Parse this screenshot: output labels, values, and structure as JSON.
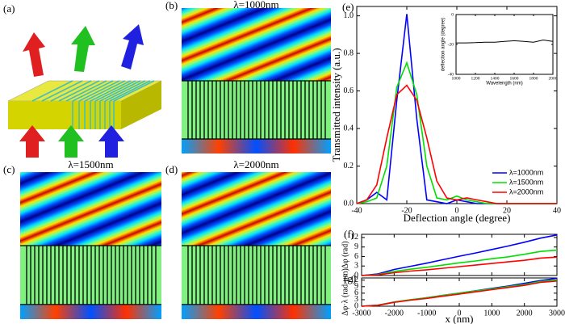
{
  "panels": {
    "a": {
      "label": "(a)"
    },
    "b": {
      "label": "(b)",
      "title": "λ=1000nm"
    },
    "c": {
      "label": "(c)",
      "title": "λ=1500nm"
    },
    "d": {
      "label": "(d)",
      "title": "λ=2000nm"
    }
  },
  "chart_data": [
    {
      "type": "line",
      "label": "(e)",
      "xlabel": "Deflection angle (degree)",
      "ylabel": "Transmitted intensity (a.u.)",
      "x": [
        -40,
        -36,
        -32,
        -28,
        -24,
        -20,
        -16,
        -12,
        -8,
        -4,
        0,
        4,
        8,
        12,
        16,
        20,
        24,
        28,
        32,
        36,
        40
      ],
      "xlim": [
        -40,
        40
      ],
      "xticks": [
        -40,
        -20,
        0,
        20,
        40
      ],
      "ylim": [
        0,
        1.05
      ],
      "yticks": [
        {
          "value": 0,
          "label": "0.0"
        },
        0.2,
        0.4,
        0.6,
        0.8,
        {
          "value": 1,
          "label": "1.0"
        }
      ],
      "legend": "lower right",
      "series": [
        {
          "name": "λ=1000nm",
          "color": "#0000ff",
          "values": [
            0,
            0.02,
            0.06,
            0.02,
            0.55,
            1.01,
            0.45,
            0.02,
            0.01,
            0,
            0.02,
            0.01,
            0,
            0,
            0,
            0,
            0,
            0,
            0,
            0,
            0
          ]
        },
        {
          "name": "λ=1500nm",
          "color": "#00e000",
          "values": [
            0,
            0.01,
            0.03,
            0.2,
            0.62,
            0.75,
            0.58,
            0.2,
            0.03,
            0.02,
            0.04,
            0.02,
            0.01,
            0,
            0,
            0,
            0,
            0,
            0,
            0,
            0
          ]
        },
        {
          "name": "λ=2000nm",
          "color": "#ff0000",
          "values": [
            0,
            0.02,
            0.1,
            0.35,
            0.58,
            0.63,
            0.55,
            0.35,
            0.12,
            0.03,
            0.02,
            0.03,
            0.02,
            0.01,
            0,
            0,
            0,
            0,
            0,
            0,
            0
          ]
        }
      ]
    },
    {
      "type": "line",
      "xlabel": "Wavelength (nm)",
      "ylabel": "deflection angle (degree)",
      "x": [
        1000,
        1100,
        1200,
        1300,
        1400,
        1500,
        1600,
        1700,
        1800,
        1900,
        2000
      ],
      "xlim": [
        1000,
        2000
      ],
      "xticks": [
        1000,
        1200,
        1400,
        1600,
        1800,
        2000
      ],
      "ylim": [
        -40,
        0
      ],
      "yticks": [
        -40,
        -20,
        0
      ],
      "series": [
        {
          "color": "#000000",
          "values": [
            -19,
            -19,
            -18.8,
            -18.5,
            -18.5,
            -18,
            -17.5,
            -18,
            -18.5,
            -17,
            -18
          ]
        }
      ]
    },
    {
      "type": "line",
      "label": "(f)",
      "ylabel": "Δφ (rad)",
      "x": [
        -3000,
        -2500,
        -2000,
        -1500,
        -1000,
        -500,
        0,
        500,
        1000,
        1500,
        2000,
        2500,
        3000
      ],
      "xlim": [
        -3000,
        3000
      ],
      "xticks": [
        -3000,
        -2000,
        -1000,
        0,
        1000,
        2000,
        3000
      ],
      "xtick_labels": false,
      "ylim": [
        0,
        13
      ],
      "yticks": [
        0,
        3,
        6,
        9,
        12
      ],
      "series": [
        {
          "color": "#0000ff",
          "values": [
            0,
            0.5,
            1.9,
            2.9,
            3.9,
            5,
            6.1,
            7.1,
            8.2,
            9.3,
            10.5,
            11.8,
            12.8
          ]
        },
        {
          "color": "#00e000",
          "values": [
            0,
            0.3,
            1.3,
            2,
            2.6,
            3.3,
            4,
            4.6,
            5.3,
            5.9,
            6.7,
            7.6,
            8
          ]
        },
        {
          "color": "#ff0000",
          "values": [
            0,
            0.2,
            0.9,
            1.4,
            1.8,
            2.3,
            2.8,
            3.3,
            3.8,
            4.3,
            4.8,
            5.5,
            5.8
          ]
        }
      ]
    },
    {
      "type": "line",
      "label": "(g)",
      "xlabel": "x (nm)",
      "ylabel": "Δφ·λ (rad·μm)",
      "x": [
        -3000,
        -2500,
        -2000,
        -1500,
        -1000,
        -500,
        0,
        500,
        1000,
        1500,
        2000,
        2500,
        3000
      ],
      "xlim": [
        -3000,
        3000
      ],
      "xticks": [
        -3000,
        -2000,
        -1000,
        0,
        1000,
        2000,
        3000
      ],
      "ylim": [
        0,
        13
      ],
      "yticks": [
        0,
        3,
        6,
        9,
        12
      ],
      "series": [
        {
          "color": "#0000ff",
          "values": [
            0,
            0.5,
            1.9,
            2.9,
            3.9,
            5,
            6,
            7.1,
            8.2,
            9.3,
            10.5,
            11.8,
            12.8
          ]
        },
        {
          "color": "#00e000",
          "values": [
            0,
            0.45,
            1.95,
            3,
            3.9,
            4.95,
            6,
            7,
            8,
            9,
            10,
            11.4,
            12
          ]
        },
        {
          "color": "#ff0000",
          "values": [
            0,
            0.4,
            1.8,
            2.8,
            3.6,
            4.6,
            5.6,
            6.6,
            7.6,
            8.6,
            9.6,
            11,
            11.6
          ]
        }
      ]
    }
  ]
}
